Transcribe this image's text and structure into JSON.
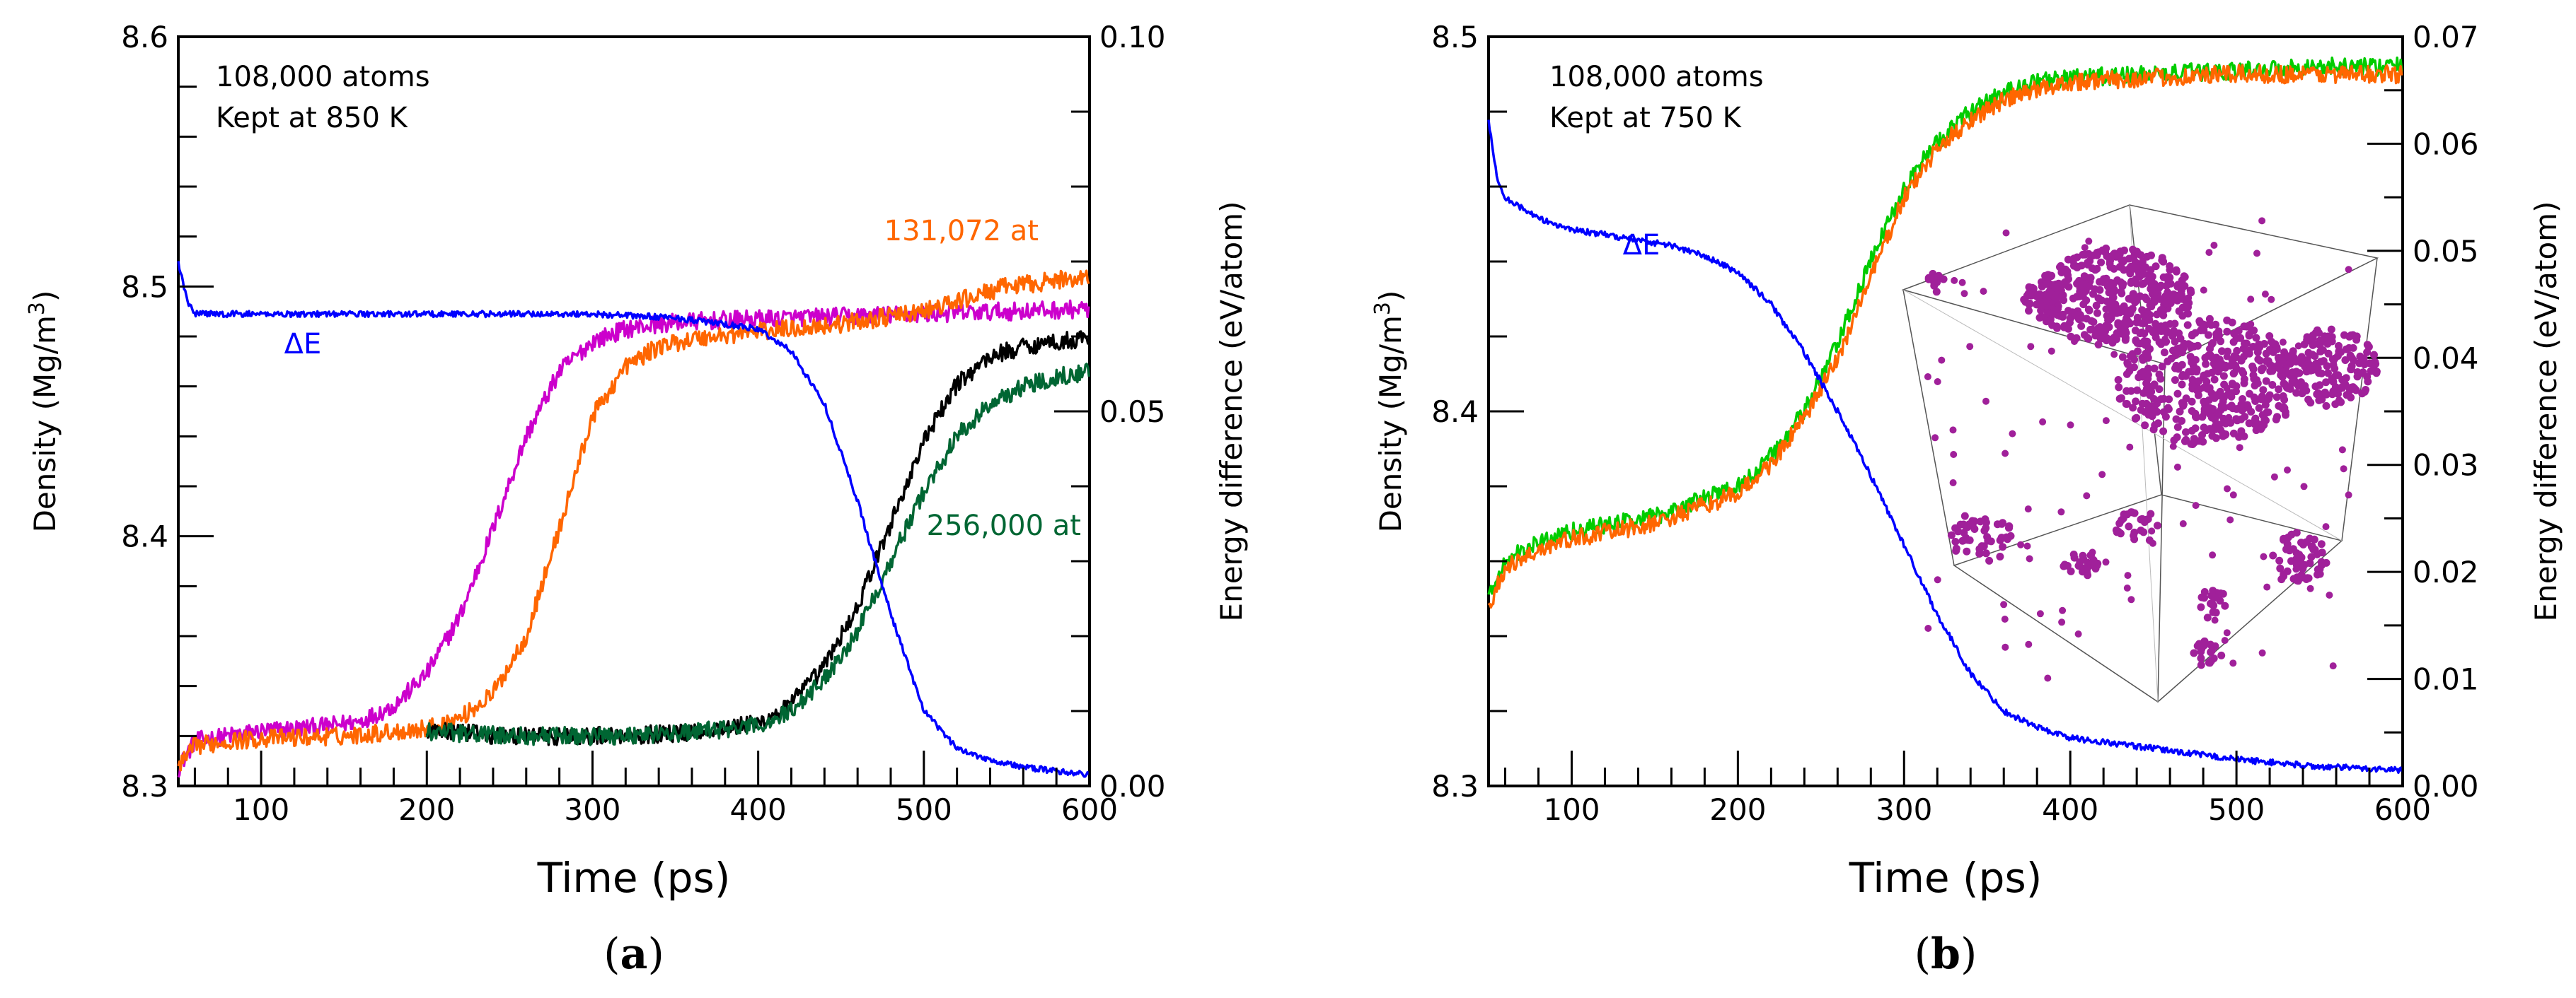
{
  "chart_data": [
    {
      "type": "line",
      "panel_label": "(a)",
      "panel_letter": "a",
      "annotation_lines": [
        "108,000 atoms",
        "Kept at 850 K"
      ],
      "xlabel": "Time (ps)",
      "ylabel_left": "Density (Mg/m3)",
      "ylabel_left_parts": {
        "prefix": "Density (Mg/m",
        "superscript": "3",
        "suffix": ")"
      },
      "ylabel_right": "Energy difference (eV/atom)",
      "xlim": [
        50,
        600
      ],
      "xticks": [
        100,
        200,
        300,
        400,
        500,
        600
      ],
      "ylim_left": [
        8.3,
        8.6
      ],
      "yticks_left": [
        "8.3",
        "8.4",
        "8.5",
        "8.6"
      ],
      "ylim_right": [
        0.0,
        0.1
      ],
      "yticks_right": [
        "0.00",
        "0.05",
        "0.10"
      ],
      "series": [
        {
          "name": "108,000 atoms (magenta)",
          "axis": "left",
          "color": "#cc00cc",
          "label": "",
          "x": [
            50,
            60,
            80,
            100,
            120,
            140,
            160,
            180,
            200,
            220,
            240,
            260,
            280,
            300,
            320,
            340,
            360,
            400,
            450,
            500,
            550,
            600
          ],
          "y": [
            8.307,
            8.318,
            8.32,
            8.322,
            8.323,
            8.324,
            8.326,
            8.332,
            8.345,
            8.368,
            8.403,
            8.44,
            8.466,
            8.478,
            8.483,
            8.485,
            8.486,
            8.487,
            8.488,
            8.489,
            8.49,
            8.491
          ]
        },
        {
          "name": "131,072 at",
          "axis": "left",
          "color": "#ff6600",
          "label": "131,072 at",
          "x": [
            50,
            60,
            80,
            100,
            150,
            200,
            220,
            240,
            260,
            280,
            300,
            320,
            340,
            360,
            400,
            450,
            500,
            550,
            600
          ],
          "y": [
            8.307,
            8.316,
            8.318,
            8.319,
            8.32,
            8.323,
            8.327,
            8.337,
            8.36,
            8.403,
            8.448,
            8.468,
            8.476,
            8.479,
            8.482,
            8.485,
            8.49,
            8.5,
            8.504
          ]
        },
        {
          "name": "108,000 atoms (black)",
          "axis": "left",
          "color": "#000000",
          "label": "",
          "x": [
            200,
            250,
            300,
            350,
            400,
            420,
            440,
            460,
            480,
            500,
            520,
            540,
            560,
            580,
            600
          ],
          "y": [
            8.322,
            8.32,
            8.32,
            8.321,
            8.325,
            8.333,
            8.348,
            8.372,
            8.405,
            8.438,
            8.461,
            8.472,
            8.476,
            8.478,
            8.479
          ]
        },
        {
          "name": "256,000 at",
          "axis": "left",
          "color": "#006633",
          "label": "256,000 at",
          "x": [
            200,
            250,
            300,
            350,
            400,
            420,
            440,
            460,
            480,
            500,
            520,
            540,
            560,
            580,
            600
          ],
          "y": [
            8.322,
            8.32,
            8.32,
            8.321,
            8.324,
            8.33,
            8.343,
            8.362,
            8.39,
            8.418,
            8.44,
            8.453,
            8.46,
            8.464,
            8.466
          ]
        },
        {
          "name": "ΔE",
          "axis": "right",
          "color": "#0000ff",
          "label": "ΔE",
          "x": [
            50,
            55,
            60,
            70,
            100,
            200,
            300,
            350,
            400,
            420,
            440,
            460,
            480,
            500,
            520,
            540,
            560,
            580,
            600
          ],
          "y": [
            0.07,
            0.065,
            0.063,
            0.063,
            0.063,
            0.063,
            0.063,
            0.0625,
            0.061,
            0.058,
            0.051,
            0.038,
            0.023,
            0.01,
            0.005,
            0.0035,
            0.0025,
            0.002,
            0.0015
          ]
        }
      ]
    },
    {
      "type": "line",
      "panel_label": "(b)",
      "panel_letter": "b",
      "annotation_lines": [
        "108,000 atoms",
        "Kept at 750 K"
      ],
      "xlabel": "Time (ps)",
      "ylabel_left": "Density (Mg/m3)",
      "ylabel_left_parts": {
        "prefix": "Density (Mg/m",
        "superscript": "3",
        "suffix": ")"
      },
      "ylabel_right": "Energy difference (eV/atom)",
      "xlim": [
        50,
        600
      ],
      "xticks": [
        100,
        200,
        300,
        400,
        500,
        600
      ],
      "ylim_left": [
        8.3,
        8.5
      ],
      "yticks_left": [
        "8.3",
        "8.4",
        "8.5"
      ],
      "ylim_right": [
        0.0,
        0.07
      ],
      "yticks_right": [
        "0.00",
        "0.01",
        "0.02",
        "0.03",
        "0.04",
        "0.05",
        "0.06",
        "0.07"
      ],
      "inset": "3D view of crystallized atom clusters (magenta dots)",
      "series": [
        {
          "name": "108,000 atoms (green)",
          "axis": "left",
          "color": "#00cc00",
          "label": "",
          "x": [
            50,
            60,
            80,
            100,
            150,
            200,
            220,
            240,
            260,
            280,
            300,
            320,
            340,
            360,
            380,
            400,
            450,
            500,
            550,
            600
          ],
          "y": [
            8.35,
            8.36,
            8.365,
            8.368,
            8.372,
            8.38,
            8.388,
            8.4,
            8.418,
            8.44,
            8.46,
            8.472,
            8.48,
            8.485,
            8.488,
            8.489,
            8.49,
            8.491,
            8.492,
            8.492
          ]
        },
        {
          "name": "108,000 atoms (orange)",
          "axis": "left",
          "color": "#ff6600",
          "label": "",
          "x": [
            50,
            60,
            80,
            100,
            150,
            200,
            220,
            240,
            260,
            280,
            300,
            320,
            340,
            360,
            380,
            400,
            450,
            500,
            550,
            600
          ],
          "y": [
            8.348,
            8.358,
            8.363,
            8.366,
            8.37,
            8.378,
            8.386,
            8.398,
            8.414,
            8.436,
            8.457,
            8.47,
            8.478,
            8.483,
            8.486,
            8.488,
            8.489,
            8.49,
            8.49,
            8.49
          ]
        },
        {
          "name": "ΔE",
          "axis": "right",
          "color": "#0000ff",
          "label": "ΔE",
          "x": [
            50,
            55,
            60,
            70,
            80,
            100,
            120,
            140,
            160,
            180,
            200,
            220,
            240,
            260,
            280,
            300,
            320,
            340,
            360,
            380,
            400,
            450,
            500,
            550,
            600
          ],
          "y": [
            0.062,
            0.057,
            0.055,
            0.054,
            0.053,
            0.052,
            0.0515,
            0.051,
            0.0505,
            0.0495,
            0.048,
            0.045,
            0.0405,
            0.035,
            0.029,
            0.0225,
            0.016,
            0.0105,
            0.007,
            0.0055,
            0.0045,
            0.0035,
            0.0025,
            0.0018,
            0.0015
          ]
        }
      ]
    }
  ]
}
